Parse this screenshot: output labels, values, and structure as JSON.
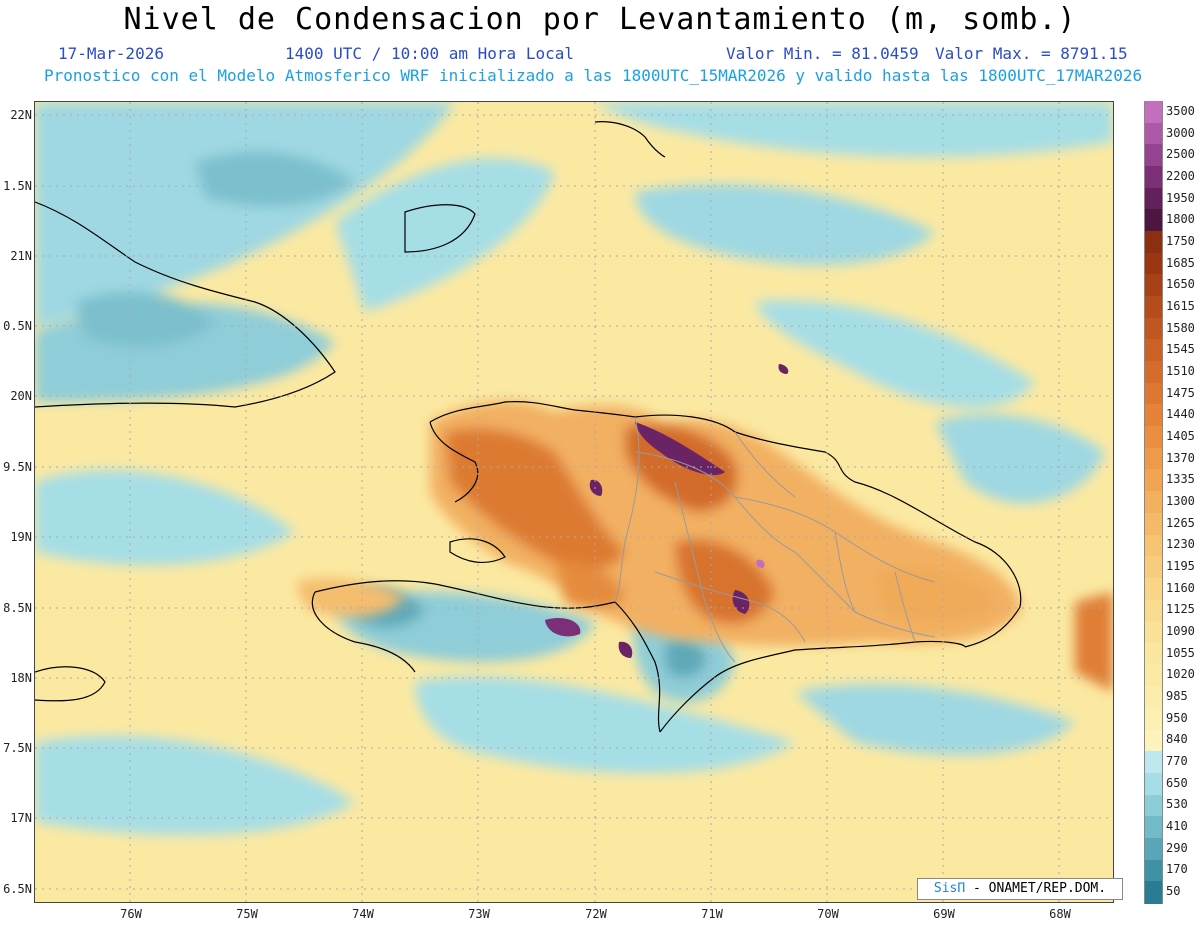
{
  "title": "Nivel de Condensacion por Levantamiento (m, somb.)",
  "date": "17-Mar-2026",
  "time": "1400 UTC / 10:00 am Hora Local",
  "min_label": "Valor Min. = 81.0459",
  "max_label": "Valor Max. = 8791.15",
  "subtitle": "Pronostico con el Modelo Atmosferico WRF inicializado a las 1800UTC_15MAR2026 y valido hasta las  1800UTC_17MAR2026",
  "lat_labels": [
    "22N",
    "1.5N",
    "21N",
    "0.5N",
    "20N",
    "9.5N",
    "19N",
    "8.5N",
    "18N",
    "7.5N",
    "17N",
    "6.5N"
  ],
  "lon_labels": [
    "76W",
    "75W",
    "74W",
    "73W",
    "72W",
    "71W",
    "70W",
    "69W",
    "68W"
  ],
  "colorbar": [
    {
      "label": "3500",
      "color": "#c46fbd"
    },
    {
      "label": "3000",
      "color": "#ad59a8"
    },
    {
      "label": "2500",
      "color": "#93438f"
    },
    {
      "label": "2200",
      "color": "#7a2f76"
    },
    {
      "label": "1950",
      "color": "#63215c"
    },
    {
      "label": "1800",
      "color": "#4c1640"
    },
    {
      "label": "1750",
      "color": "#8a2f10"
    },
    {
      "label": "1685",
      "color": "#9a3712"
    },
    {
      "label": "1650",
      "color": "#a84116"
    },
    {
      "label": "1615",
      "color": "#b54c1b"
    },
    {
      "label": "1580",
      "color": "#c05620"
    },
    {
      "label": "1545",
      "color": "#cb6125"
    },
    {
      "label": "1510",
      "color": "#d56c2b"
    },
    {
      "label": "1475",
      "color": "#de7731"
    },
    {
      "label": "1440",
      "color": "#e58338"
    },
    {
      "label": "1405",
      "color": "#ea8e40"
    },
    {
      "label": "1370",
      "color": "#ee9a49"
    },
    {
      "label": "1335",
      "color": "#f1a553"
    },
    {
      "label": "1300",
      "color": "#f3b05e"
    },
    {
      "label": "1265",
      "color": "#f5ba68"
    },
    {
      "label": "1230",
      "color": "#f6c473"
    },
    {
      "label": "1195",
      "color": "#f7cd7d"
    },
    {
      "label": "1160",
      "color": "#f8d587"
    },
    {
      "label": "1125",
      "color": "#f9dc90"
    },
    {
      "label": "1090",
      "color": "#fae298"
    },
    {
      "label": "1055",
      "color": "#fbe79f"
    },
    {
      "label": "1020",
      "color": "#fbeaa5"
    },
    {
      "label": "985",
      "color": "#fcedac"
    },
    {
      "label": "950",
      "color": "#fdf0b3"
    },
    {
      "label": "840",
      "color": "#fdf3bb"
    },
    {
      "label": "770",
      "color": "#bde8ee"
    },
    {
      "label": "650",
      "color": "#a7dde6"
    },
    {
      "label": "530",
      "color": "#8ccdd8"
    },
    {
      "label": "410",
      "color": "#72bac8"
    },
    {
      "label": "290",
      "color": "#58a6b7"
    },
    {
      "label": "170",
      "color": "#3f91a5"
    },
    {
      "label": "50",
      "color": "#2a7c93"
    }
  ],
  "credit_brand": "SisΠ",
  "credit_text": " - ONAMET/REP.DOM."
}
